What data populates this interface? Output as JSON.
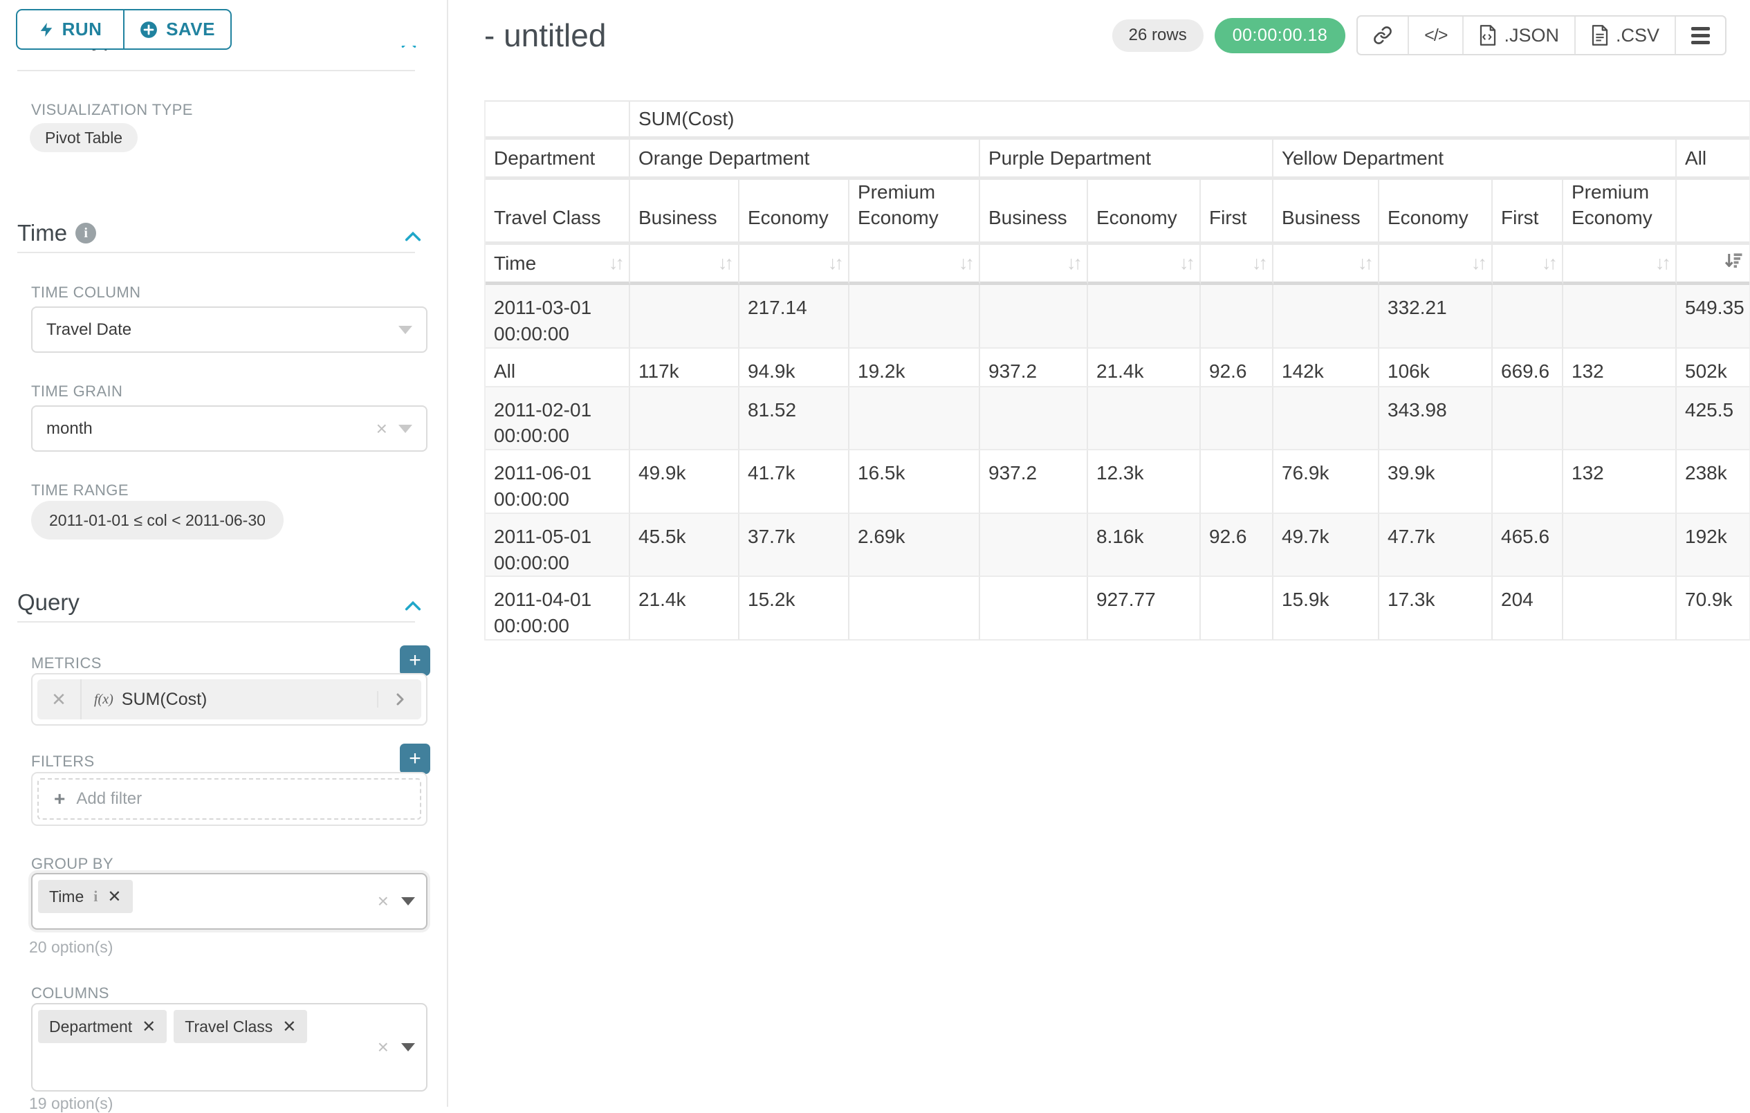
{
  "sidebar": {
    "run_label": "RUN",
    "save_label": "SAVE",
    "chart_type_header": "Chart Type",
    "visualization_type_label": "VISUALIZATION TYPE",
    "visualization_type_value": "Pivot Table",
    "time_section": {
      "title": "Time",
      "time_column_label": "TIME COLUMN",
      "time_column_value": "Travel Date",
      "time_grain_label": "TIME GRAIN",
      "time_grain_value": "month",
      "time_range_label": "TIME RANGE",
      "time_range_value": "2011-01-01 ≤ col < 2011-06-30"
    },
    "query_section": {
      "title": "Query",
      "metrics_label": "METRICS",
      "metric_prefix": "f(x)",
      "metric_value": "SUM(Cost)",
      "filters_label": "FILTERS",
      "add_filter_label": "Add filter",
      "group_by_label": "GROUP BY",
      "group_by_chips": [
        "Time"
      ],
      "group_by_hint": "20 option(s)",
      "columns_label": "COLUMNS",
      "columns_chips": [
        "Department",
        "Travel Class"
      ],
      "columns_hint": "19 option(s)"
    }
  },
  "header": {
    "title": "- untitled",
    "row_count_badge": "26 rows",
    "timer_badge": "00:00:00.18",
    "code_glyph": "</>",
    "export_json_label": ".JSON",
    "export_csv_label": ".CSV"
  },
  "table": {
    "metric_header": "SUM(Cost)",
    "department_header": "Department",
    "travel_class_header": "Travel Class",
    "time_header": "Time",
    "groups": [
      {
        "label": "Orange Department",
        "columns": [
          "Business",
          "Economy",
          "Premium Economy"
        ]
      },
      {
        "label": "Purple Department",
        "columns": [
          "Business",
          "Economy",
          "First"
        ]
      },
      {
        "label": "Yellow Department",
        "columns": [
          "Business",
          "Economy",
          "First",
          "Premium Economy"
        ]
      },
      {
        "label": "All",
        "columns": [
          ""
        ]
      }
    ],
    "rows": [
      {
        "label": "2011-03-01 00:00:00",
        "values": [
          "",
          "217.14",
          "",
          "",
          "",
          "",
          "",
          "332.21",
          "",
          "",
          "549.35"
        ]
      },
      {
        "label": "All",
        "values": [
          "117k",
          "94.9k",
          "19.2k",
          "937.2",
          "21.4k",
          "92.6",
          "142k",
          "106k",
          "669.6",
          "132",
          "502k"
        ]
      },
      {
        "label": "2011-02-01 00:00:00",
        "values": [
          "",
          "81.52",
          "",
          "",
          "",
          "",
          "",
          "343.98",
          "",
          "",
          "425.5"
        ]
      },
      {
        "label": "2011-06-01 00:00:00",
        "values": [
          "49.9k",
          "41.7k",
          "16.5k",
          "937.2",
          "12.3k",
          "",
          "76.9k",
          "39.9k",
          "",
          "132",
          "238k"
        ]
      },
      {
        "label": "2011-05-01 00:00:00",
        "values": [
          "45.5k",
          "37.7k",
          "2.69k",
          "",
          "8.16k",
          "92.6",
          "49.7k",
          "47.7k",
          "465.6",
          "",
          "192k"
        ]
      },
      {
        "label": "2011-04-01 00:00:00",
        "values": [
          "21.4k",
          "15.2k",
          "",
          "",
          "927.77",
          "",
          "15.9k",
          "17.3k",
          "204",
          "",
          "70.9k"
        ]
      }
    ]
  }
}
